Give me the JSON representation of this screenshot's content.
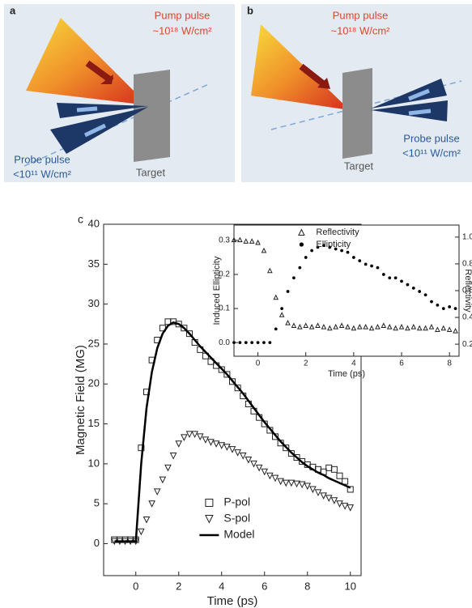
{
  "diagrams": [
    {
      "label": "a",
      "pump": "Pump pulse",
      "pump_intensity": "~10¹⁸ W/cm²",
      "probe": "Probe pulse",
      "probe_intensity": "<10¹¹ W/cm²",
      "target": "Target"
    },
    {
      "label": "b",
      "pump": "Pump pulse",
      "pump_intensity": "~10¹⁸ W/cm²",
      "probe": "Probe pulse",
      "probe_intensity": "<10¹¹ W/cm²",
      "target": "Target"
    }
  ],
  "chart_data": [
    {
      "type": "line",
      "label": "c",
      "xlabel": "Time (ps)",
      "ylabel": "Magnetic Field (MG)",
      "x": [
        -1,
        -0.75,
        -0.5,
        -0.25,
        0,
        0.25,
        0.5,
        0.75,
        1,
        1.25,
        1.5,
        1.75,
        2,
        2.25,
        2.5,
        2.75,
        3,
        3.25,
        3.5,
        3.75,
        4,
        4.25,
        4.5,
        4.75,
        5,
        5.25,
        5.5,
        5.75,
        6,
        6.25,
        6.5,
        6.75,
        7,
        7.25,
        7.5,
        7.75,
        8,
        8.25,
        8.5,
        8.75,
        9,
        9.25,
        9.5,
        9.75,
        10
      ],
      "series": [
        {
          "name": "P-pol",
          "marker": "square",
          "color": "#222222",
          "values": [
            0.5,
            0.5,
            0.5,
            0.5,
            0.5,
            12,
            19,
            23,
            25.5,
            27,
            27.8,
            27.8,
            27.5,
            27,
            26.3,
            25.2,
            24.3,
            23.5,
            22.8,
            22.3,
            21.8,
            21.2,
            20.3,
            19.5,
            18.5,
            17.5,
            16.6,
            15.8,
            15,
            14.2,
            13.4,
            12.6,
            12,
            11.3,
            10.8,
            10.3,
            9.9,
            9.6,
            9.3,
            9.0,
            9.5,
            9.3,
            8.5,
            7.8,
            6.8
          ]
        },
        {
          "name": "S-pol",
          "marker": "triangle-down",
          "color": "#222222",
          "values": [
            0.3,
            0.3,
            0.3,
            0.3,
            0.3,
            1.5,
            3,
            5,
            6.5,
            8,
            9.5,
            11,
            12.5,
            13.3,
            13.7,
            13.7,
            13.4,
            13.0,
            12.7,
            12.5,
            12.3,
            12.1,
            11.8,
            11.4,
            11,
            10.5,
            10,
            9.5,
            9,
            8.5,
            8.2,
            7.8,
            7.6,
            7.6,
            7.5,
            7.4,
            7.2,
            6.8,
            6.4,
            6.0,
            5.7,
            5.4,
            5.0,
            4.7,
            4.5
          ]
        },
        {
          "name": "Model",
          "marker": "none",
          "color": "#000000",
          "values": [
            0.3,
            0.3,
            0.3,
            0.3,
            0.3,
            10,
            17,
            21.5,
            24.5,
            26.3,
            27.3,
            27.7,
            27.5,
            27,
            26.3,
            25.5,
            24.7,
            24,
            23.3,
            22.6,
            21.9,
            21.2,
            20.4,
            19.6,
            18.8,
            17.9,
            17,
            16.1,
            15.2,
            14.4,
            13.6,
            12.8,
            12.1,
            11.4,
            10.8,
            10.2,
            9.7,
            9.3,
            8.9,
            8.6,
            8.2,
            7.9,
            7.6,
            7.3,
            7.0
          ]
        }
      ],
      "xlim": [
        -1.5,
        10.5
      ],
      "xticks": [
        0,
        2,
        4,
        6,
        8,
        10
      ],
      "ylim": [
        -4,
        40
      ],
      "yticks": [
        0,
        5,
        10,
        15,
        20,
        25,
        30,
        35,
        40
      ],
      "legend": "lower center"
    },
    {
      "type": "line",
      "xlabel": "Time (ps)",
      "ylabel": "Induced Ellipticity",
      "y2label": "Reflectivity",
      "x": [
        -1,
        -0.75,
        -0.5,
        -0.25,
        0,
        0.25,
        0.5,
        0.75,
        1,
        1.25,
        1.5,
        1.75,
        2,
        2.25,
        2.5,
        2.75,
        3,
        3.25,
        3.5,
        3.75,
        4,
        4.25,
        4.5,
        4.75,
        5,
        5.25,
        5.5,
        5.75,
        6,
        6.25,
        6.5,
        6.75,
        7,
        7.25,
        7.5,
        7.75,
        8,
        8.25
      ],
      "series": [
        {
          "name": "Reflectivity",
          "marker": "triangle-up",
          "color": "#222222",
          "axis": "y2",
          "values": [
            0.98,
            0.98,
            0.97,
            0.97,
            0.96,
            0.9,
            0.75,
            0.55,
            0.42,
            0.36,
            0.34,
            0.33,
            0.34,
            0.33,
            0.34,
            0.33,
            0.32,
            0.33,
            0.34,
            0.33,
            0.32,
            0.33,
            0.33,
            0.32,
            0.33,
            0.34,
            0.33,
            0.32,
            0.33,
            0.32,
            0.33,
            0.32,
            0.32,
            0.33,
            0.31,
            0.32,
            0.31,
            0.3
          ]
        },
        {
          "name": "Ellipticity",
          "marker": "circle",
          "color": "#000000",
          "values": [
            0,
            0,
            0,
            0,
            0,
            0,
            0,
            0.04,
            0.1,
            0.15,
            0.19,
            0.22,
            0.25,
            0.27,
            0.28,
            0.285,
            0.28,
            0.275,
            0.27,
            0.265,
            0.25,
            0.24,
            0.23,
            0.225,
            0.22,
            0.2,
            0.19,
            0.19,
            0.18,
            0.17,
            0.16,
            0.15,
            0.14,
            0.12,
            0.11,
            0.1,
            0.105,
            0.1
          ]
        }
      ],
      "xlim": [
        -1,
        8.4
      ],
      "xticks": [
        0,
        2,
        4,
        6,
        8
      ],
      "ylim": [
        -0.04,
        0.345
      ],
      "yticks": [
        {
          "value": 0,
          "label": "0.0"
        },
        0.1,
        0.2,
        0.3
      ],
      "y2lim": [
        0.11,
        1.09
      ],
      "y2ticks": [
        0.2,
        0.4,
        0.6,
        0.8,
        {
          "value": 1,
          "label": "1.0"
        }
      ],
      "legend": "upper center"
    }
  ]
}
